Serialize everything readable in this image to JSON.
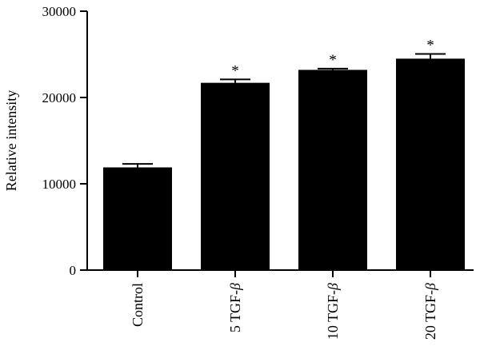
{
  "chart_data": {
    "type": "bar",
    "title": "",
    "xlabel": "",
    "ylabel": "Relative intensity",
    "ylim": [
      0,
      30000
    ],
    "yticks": [
      0,
      10000,
      20000,
      30000
    ],
    "grid": false,
    "categories": [
      {
        "label": "Control",
        "italic_suffix": ""
      },
      {
        "label": "5 TGF-",
        "italic_suffix": "β"
      },
      {
        "label": "10 TGF-",
        "italic_suffix": "β"
      },
      {
        "label": "20 TGF-",
        "italic_suffix": "β"
      }
    ],
    "values": [
      11900,
      21700,
      23200,
      24500
    ],
    "error": [
      400,
      400,
      150,
      550
    ],
    "significance": [
      "",
      "*",
      "*",
      "*"
    ],
    "bar_color": "#000000"
  }
}
